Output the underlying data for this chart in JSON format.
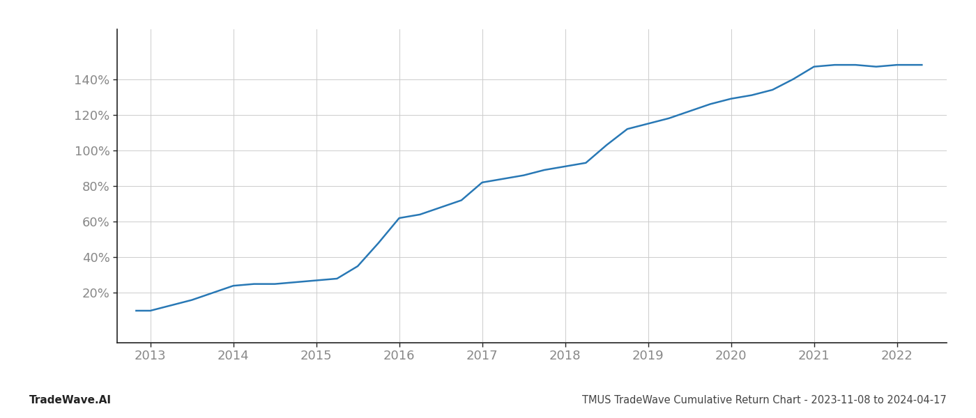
{
  "title": "TMUS TradeWave Cumulative Return Chart - 2023-11-08 to 2024-04-17",
  "watermark": "TradeWave.AI",
  "line_color": "#2878b5",
  "background_color": "#ffffff",
  "grid_color": "#cccccc",
  "x_values": [
    2012.83,
    2013.0,
    2013.25,
    2013.5,
    2013.75,
    2014.0,
    2014.25,
    2014.5,
    2014.75,
    2015.0,
    2015.25,
    2015.5,
    2015.75,
    2016.0,
    2016.25,
    2016.5,
    2016.75,
    2017.0,
    2017.25,
    2017.5,
    2017.75,
    2018.0,
    2018.25,
    2018.5,
    2018.75,
    2019.0,
    2019.25,
    2019.5,
    2019.75,
    2020.0,
    2020.25,
    2020.5,
    2020.75,
    2021.0,
    2021.25,
    2021.5,
    2021.75,
    2022.0,
    2022.3
  ],
  "y_values": [
    10,
    10,
    13,
    16,
    20,
    24,
    25,
    25,
    26,
    27,
    28,
    35,
    48,
    62,
    64,
    68,
    72,
    82,
    84,
    86,
    89,
    91,
    93,
    103,
    112,
    115,
    118,
    122,
    126,
    129,
    131,
    134,
    140,
    147,
    148,
    148,
    147,
    148,
    148
  ],
  "xlim": [
    2012.6,
    2022.6
  ],
  "ylim": [
    -8,
    168
  ],
  "yticks": [
    20,
    40,
    60,
    80,
    100,
    120,
    140
  ],
  "xticks": [
    2013,
    2014,
    2015,
    2016,
    2017,
    2018,
    2019,
    2020,
    2021,
    2022
  ],
  "line_width": 1.8,
  "title_fontsize": 10.5,
  "watermark_fontsize": 11,
  "tick_fontsize": 13,
  "axis_label_color": "#888888",
  "left_spine_color": "#222222",
  "bottom_spine_color": "#222222"
}
